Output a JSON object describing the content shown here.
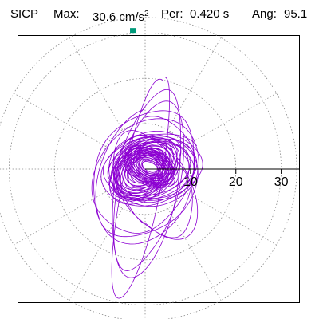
{
  "header": {
    "station": "SICP",
    "max_label": "Max:",
    "max_value": "30.6 cm/s",
    "max_exp": "2",
    "per_label": "Per:",
    "per_value": "0.420 s",
    "ang_label": "Ang:",
    "ang_value": "95.1"
  },
  "chart_data": {
    "type": "polar-orbit",
    "title": "",
    "radial_ticks": [
      "10",
      "20",
      "30"
    ],
    "radial_values": [
      10,
      20,
      30
    ],
    "rlim": [
      0,
      32
    ],
    "grid": true,
    "grid_style": "dotted circles and radial spokes every 30 degrees",
    "series_color": "#8c00d2",
    "max_marker": {
      "amplitude": 30.6,
      "angle_deg": 95.1,
      "color": "#009a7a"
    },
    "orbit_loops": [
      {
        "cx": -1.0,
        "cy": -4.0,
        "a": 24.0,
        "b": 4.5,
        "rot": 78,
        "cycles": 1.0,
        "decay": 0.02,
        "phase": 0.0
      },
      {
        "cx": 0.5,
        "cy": -3.0,
        "a": 20.5,
        "b": 7.0,
        "rot": 78,
        "cycles": 2.0,
        "decay": 0.08,
        "phase": 1.3
      },
      {
        "cx": 0.0,
        "cy": -1.5,
        "a": 15.0,
        "b": 11.0,
        "rot": 65,
        "cycles": 3.0,
        "decay": 0.1,
        "phase": 0.6
      },
      {
        "cx": 2.0,
        "cy": -3.5,
        "a": 13.0,
        "b": 7.5,
        "rot": 120,
        "cycles": 2.0,
        "decay": 0.1,
        "phase": 2.1
      },
      {
        "cx": 1.5,
        "cy": 0.0,
        "a": 11.0,
        "b": 8.0,
        "rot": 10,
        "cycles": 8.0,
        "decay": 0.28,
        "phase": 0.4
      },
      {
        "cx": 0.0,
        "cy": 0.0,
        "a": 9.0,
        "b": 6.0,
        "rot": 40,
        "cycles": 20.0,
        "decay": 0.6,
        "phase": 1.9
      },
      {
        "cx": 1.0,
        "cy": 0.5,
        "a": 6.5,
        "b": 4.0,
        "rot": 150,
        "cycles": 24.0,
        "decay": 0.75,
        "phase": 0.9
      }
    ]
  }
}
